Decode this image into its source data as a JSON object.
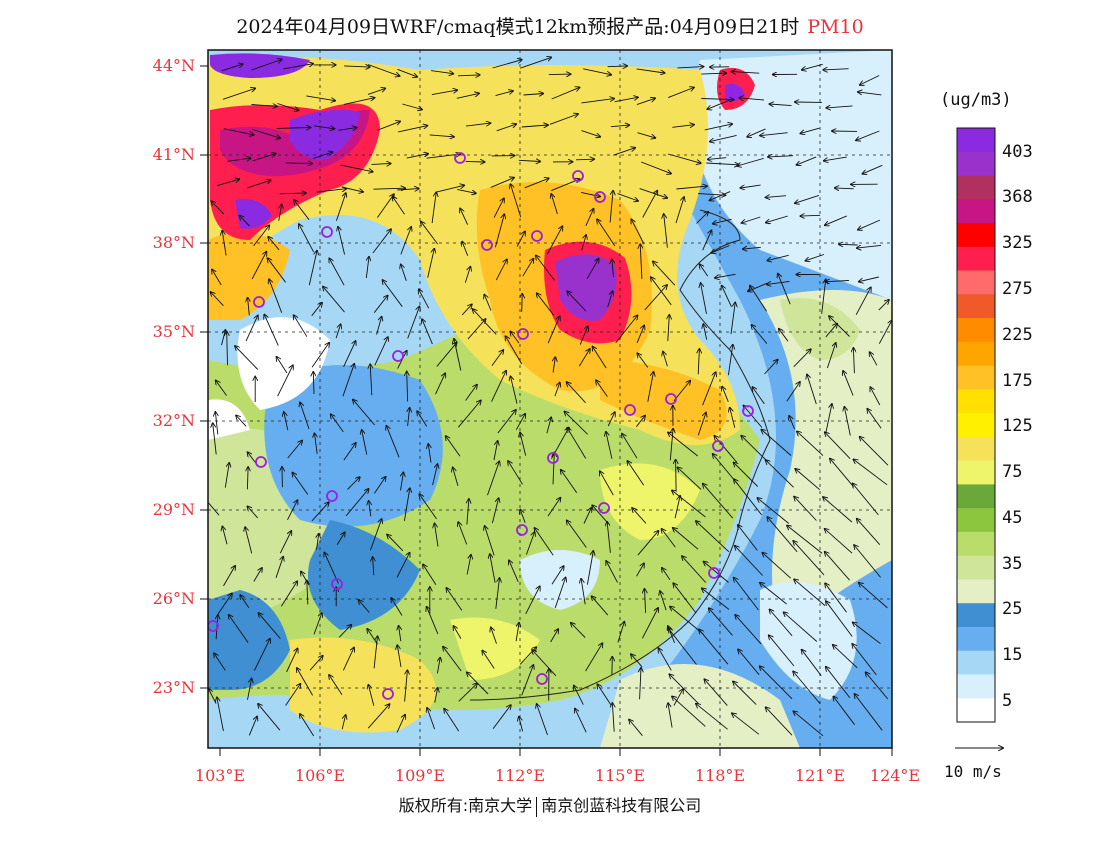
{
  "title": {
    "main": "2024年04月09日WRF/cmaq模式12km预报产品:04月09日21时",
    "pollutant": "PM10"
  },
  "lat_labels": [
    "44°N",
    "41°N",
    "38°N",
    "35°N",
    "32°N",
    "29°N",
    "26°N",
    "23°N"
  ],
  "lon_labels": [
    "103°E",
    "106°E",
    "109°E",
    "112°E",
    "115°E",
    "118°E",
    "121°E",
    "124°E"
  ],
  "legend": {
    "unit": "(ug/m3)",
    "labels": [
      "403",
      "368",
      "325",
      "275",
      "225",
      "175",
      "125",
      "75",
      "45",
      "35",
      "25",
      "15",
      "5"
    ],
    "colors": [
      "#8a2be2",
      "#9932cc",
      "#b03060",
      "#c71585",
      "#ff0000",
      "#ff1f4f",
      "#ff6a6a",
      "#f05a28",
      "#ff8c00",
      "#ffa500",
      "#ffc125",
      "#ffe000",
      "#fff000",
      "#f5e25a",
      "#eef56a",
      "#6aa83a",
      "#8cc63f",
      "#b9dc6a",
      "#cfe59a",
      "#e4efc6",
      "#3f8fd2",
      "#66aef0",
      "#a6d8f5",
      "#d8f0fb",
      "#ffffff"
    ]
  },
  "vector_scale": {
    "label": "10 m/s"
  },
  "copyright": {
    "left": "版权所有:南京大学",
    "right": "南京创蓝科技有限公司"
  },
  "stations": "city-marker-circles"
}
